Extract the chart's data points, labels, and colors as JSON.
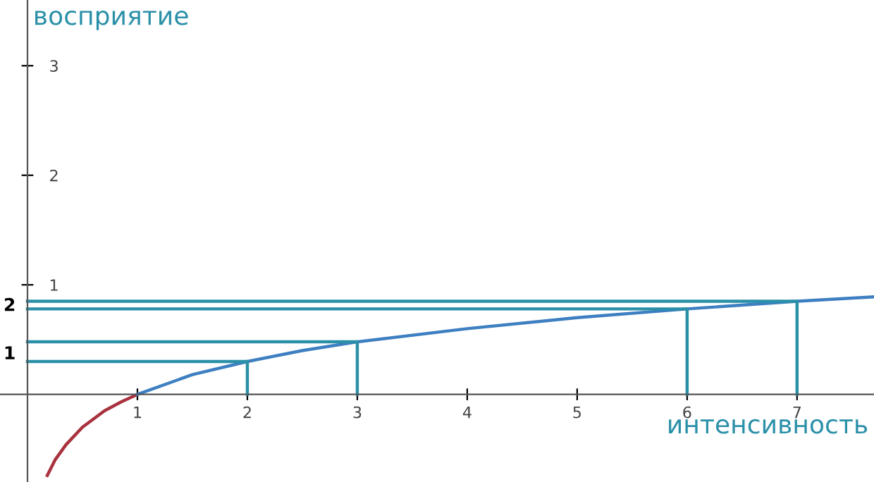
{
  "chart_data": {
    "type": "line",
    "ylabel": "восприятие",
    "xlabel": "интенсивность",
    "xlim": [
      -0.25,
      7.7
    ],
    "ylim": [
      -0.8,
      3.6
    ],
    "xticks": [
      1,
      2,
      3,
      4,
      5,
      6,
      7
    ],
    "yticks": [
      1,
      2,
      3
    ],
    "grid": false,
    "legend": false,
    "marker": "none",
    "line_style": "solid",
    "series": [
      {
        "color": "#a8323e",
        "x": [
          0.18,
          0.25,
          0.35,
          0.5,
          0.7,
          0.85,
          1
        ],
        "values": [
          -0.74,
          -0.6,
          -0.46,
          -0.3,
          -0.15,
          -0.07,
          0
        ]
      },
      {
        "color": "#3d7fc1",
        "x": [
          1,
          1.5,
          2,
          2.5,
          3,
          4,
          5,
          6,
          7,
          7.7
        ],
        "values": [
          0,
          0.18,
          0.3,
          0.4,
          0.48,
          0.6,
          0.7,
          0.78,
          0.85,
          0.89
        ]
      },
      {
        "color": "#2a90a8",
        "x": [
          0,
          2,
          2
        ],
        "values": [
          0.3,
          0.3,
          0
        ]
      },
      {
        "color": "#2a90a8",
        "x": [
          0,
          3,
          3
        ],
        "values": [
          0.48,
          0.48,
          0
        ]
      },
      {
        "color": "#2a90a8",
        "x": [
          0,
          6,
          6
        ],
        "values": [
          0.78,
          0.78,
          0
        ]
      },
      {
        "color": "#2a90a8",
        "x": [
          0,
          7,
          7
        ],
        "values": [
          0.85,
          0.85,
          0
        ]
      }
    ],
    "annotations": [
      "1",
      "2"
    ]
  }
}
